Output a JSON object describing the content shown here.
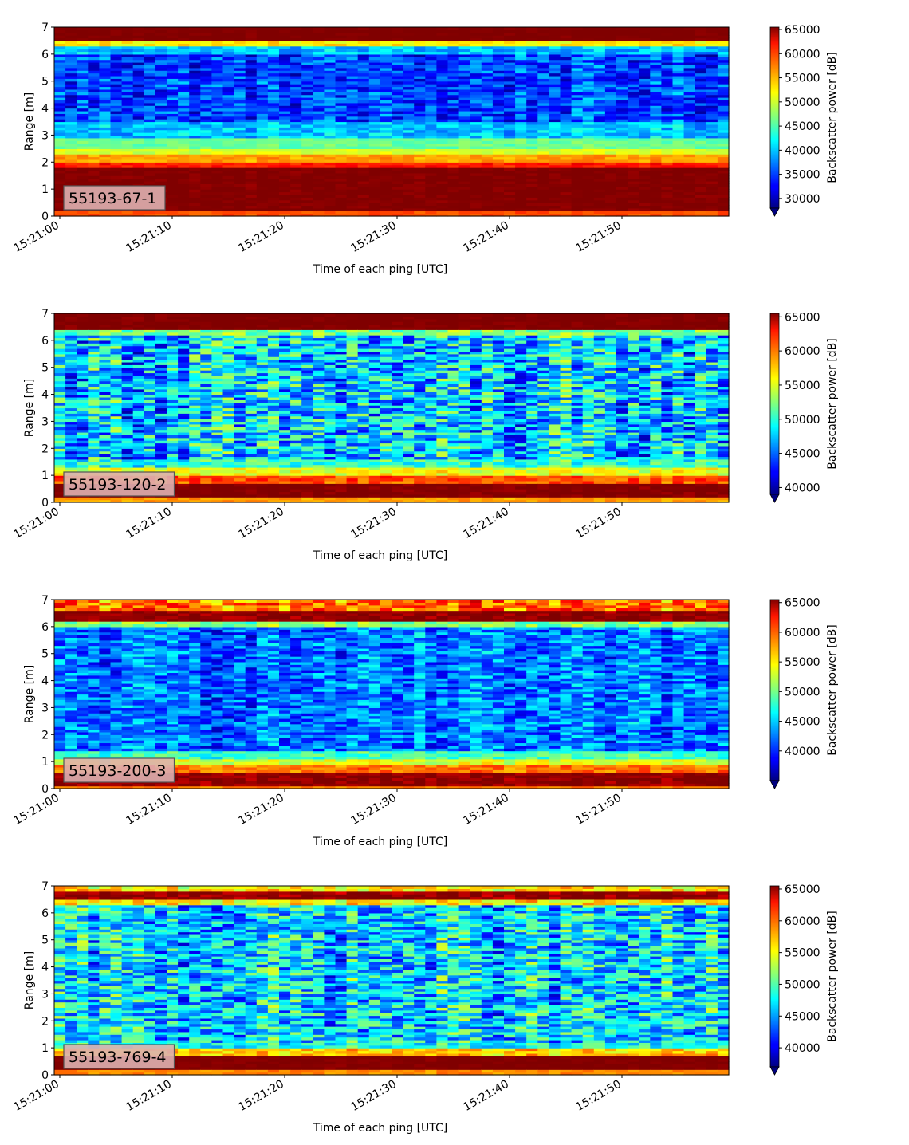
{
  "chart_data": [
    {
      "type": "heatmap",
      "label": "55193-67-1",
      "xlabel": "Time of each ping [UTC]",
      "ylabel": "Range [m]",
      "x_range": [
        "15:21:00",
        "15:21:59"
      ],
      "x_ticks": [
        "15:21:00",
        "15:21:10",
        "15:21:20",
        "15:21:30",
        "15:21:40",
        "15:21:50"
      ],
      "ylim": [
        0,
        7
      ],
      "y_ticks": [
        0,
        1,
        2,
        3,
        4,
        5,
        6,
        7
      ],
      "colorbar": {
        "label": "Backscatter power [dB]",
        "min": 28000,
        "max": 65500,
        "ticks": [
          30000,
          35000,
          40000,
          45000,
          50000,
          55000,
          60000,
          65000
        ],
        "colormap": "jet",
        "extend": "min"
      },
      "profile": [
        {
          "range": [
            0,
            0.2
          ],
          "value": 58000,
          "noise": 1000
        },
        {
          "range": [
            0.2,
            1.8
          ],
          "value": 65500,
          "noise": 800
        },
        {
          "range": [
            1.8,
            2.05
          ],
          "value": 60000,
          "noise": 1500
        },
        {
          "range": [
            2.05,
            2.3
          ],
          "value": 55000,
          "noise": 1500
        },
        {
          "range": [
            2.3,
            2.55
          ],
          "value": 50000,
          "noise": 1500
        },
        {
          "range": [
            2.55,
            2.9
          ],
          "value": 46000,
          "noise": 1500
        },
        {
          "range": [
            2.9,
            3.5
          ],
          "value": 40000,
          "noise": 3000
        },
        {
          "range": [
            3.5,
            6.0
          ],
          "value": 35000,
          "noise": 4500
        },
        {
          "range": [
            6.0,
            6.35
          ],
          "value": 40000,
          "noise": 3000
        },
        {
          "range": [
            6.35,
            6.5
          ],
          "value": 52000,
          "noise": 2000
        },
        {
          "range": [
            6.5,
            7.0
          ],
          "value": 65500,
          "noise": 500
        }
      ]
    },
    {
      "type": "heatmap",
      "label": "55193-120-2",
      "xlabel": "Time of each ping [UTC]",
      "ylabel": "Range [m]",
      "x_range": [
        "15:21:00",
        "15:21:59"
      ],
      "x_ticks": [
        "15:21:00",
        "15:21:10",
        "15:21:20",
        "15:21:30",
        "15:21:40",
        "15:21:50"
      ],
      "ylim": [
        0,
        7
      ],
      "y_ticks": [
        0,
        1,
        2,
        3,
        4,
        5,
        6,
        7
      ],
      "colorbar": {
        "label": "Backscatter power [dB]",
        "min": 39000,
        "max": 65500,
        "ticks": [
          40000,
          45000,
          50000,
          55000,
          60000,
          65000
        ],
        "colormap": "jet",
        "extend": "min"
      },
      "profile": [
        {
          "range": [
            0,
            0.2
          ],
          "value": 58000,
          "noise": 1000
        },
        {
          "range": [
            0.2,
            0.75
          ],
          "value": 65500,
          "noise": 800
        },
        {
          "range": [
            0.75,
            1.0
          ],
          "value": 60000,
          "noise": 2000
        },
        {
          "range": [
            1.0,
            1.3
          ],
          "value": 55000,
          "noise": 2000
        },
        {
          "range": [
            1.3,
            1.6
          ],
          "value": 50000,
          "noise": 3000
        },
        {
          "range": [
            1.6,
            6.2
          ],
          "value": 47500,
          "noise": 5500
        },
        {
          "range": [
            6.2,
            6.4
          ],
          "value": 52000,
          "noise": 2500
        },
        {
          "range": [
            6.4,
            7.0
          ],
          "value": 65500,
          "noise": 500
        }
      ]
    },
    {
      "type": "heatmap",
      "label": "55193-200-3",
      "xlabel": "Time of each ping [UTC]",
      "ylabel": "Range [m]",
      "x_range": [
        "15:21:00",
        "15:21:59"
      ],
      "x_ticks": [
        "15:21:00",
        "15:21:10",
        "15:21:20",
        "15:21:30",
        "15:21:40",
        "15:21:50"
      ],
      "ylim": [
        0,
        7
      ],
      "y_ticks": [
        0,
        1,
        2,
        3,
        4,
        5,
        6,
        7
      ],
      "colorbar": {
        "label": "Backscatter power [dB]",
        "min": 35000,
        "max": 65500,
        "ticks": [
          40000,
          45000,
          50000,
          55000,
          60000,
          65000
        ],
        "colormap": "jet",
        "extend": "min"
      },
      "profile": [
        {
          "range": [
            0,
            0.15
          ],
          "value": 58000,
          "noise": 1000
        },
        {
          "range": [
            0.15,
            0.65
          ],
          "value": 65000,
          "noise": 1500
        },
        {
          "range": [
            0.65,
            0.9
          ],
          "value": 58000,
          "noise": 2000
        },
        {
          "range": [
            0.9,
            1.15
          ],
          "value": 53000,
          "noise": 2000
        },
        {
          "range": [
            1.15,
            1.4
          ],
          "value": 48000,
          "noise": 2500
        },
        {
          "range": [
            1.4,
            6.0
          ],
          "value": 42000,
          "noise": 4000
        },
        {
          "range": [
            6.0,
            6.25
          ],
          "value": 50000,
          "noise": 3000
        },
        {
          "range": [
            6.25,
            6.6
          ],
          "value": 65000,
          "noise": 1500
        },
        {
          "range": [
            6.6,
            7.0
          ],
          "value": 58000,
          "noise": 4000
        }
      ]
    },
    {
      "type": "heatmap",
      "label": "55193-769-4",
      "xlabel": "Time of each ping [UTC]",
      "ylabel": "Range [m]",
      "x_range": [
        "15:21:00",
        "15:21:59"
      ],
      "x_ticks": [
        "15:21:00",
        "15:21:10",
        "15:21:20",
        "15:21:30",
        "15:21:40",
        "15:21:50"
      ],
      "ylim": [
        0,
        7
      ],
      "y_ticks": [
        0,
        1,
        2,
        3,
        4,
        5,
        6,
        7
      ],
      "colorbar": {
        "label": "Backscatter power [dB]",
        "min": 37000,
        "max": 65500,
        "ticks": [
          40000,
          45000,
          50000,
          55000,
          60000,
          65000
        ],
        "colormap": "jet",
        "extend": "min"
      },
      "profile": [
        {
          "range": [
            0,
            0.2
          ],
          "value": 58000,
          "noise": 1000
        },
        {
          "range": [
            0.2,
            0.75
          ],
          "value": 65500,
          "noise": 500
        },
        {
          "range": [
            0.75,
            1.0
          ],
          "value": 56000,
          "noise": 2500
        },
        {
          "range": [
            1.0,
            1.2
          ],
          "value": 48000,
          "noise": 3000
        },
        {
          "range": [
            1.2,
            6.3
          ],
          "value": 46500,
          "noise": 5500
        },
        {
          "range": [
            6.3,
            6.45
          ],
          "value": 55000,
          "noise": 3000
        },
        {
          "range": [
            6.45,
            6.85
          ],
          "value": 65000,
          "noise": 2000
        },
        {
          "range": [
            6.85,
            7.0
          ],
          "value": 55000,
          "noise": 3000
        }
      ]
    }
  ]
}
